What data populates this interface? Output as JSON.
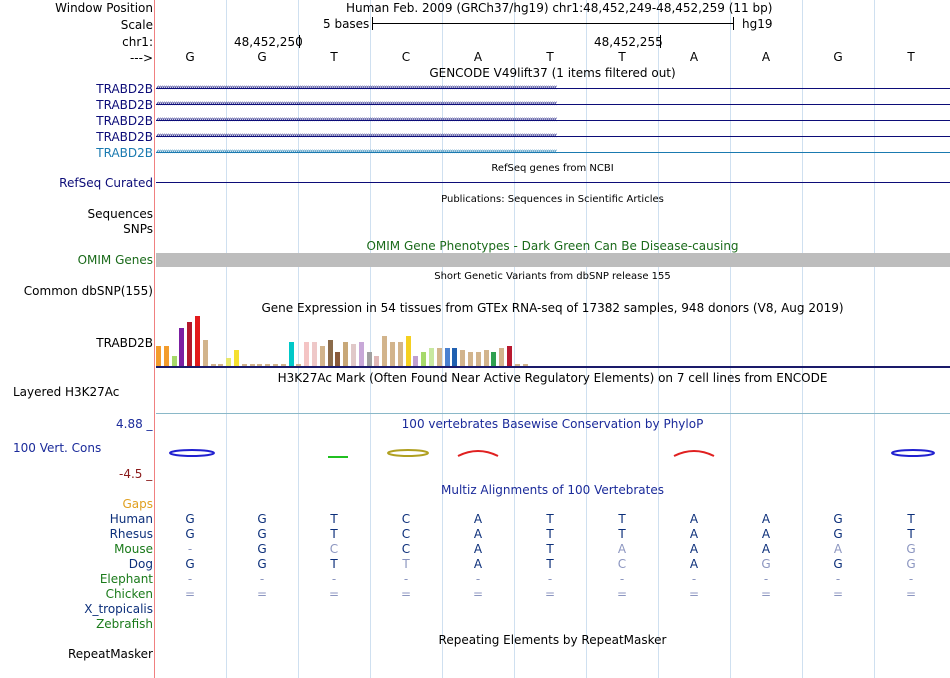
{
  "header": {
    "window_position_label": "Window Position",
    "title": "Human Feb. 2009 (GRCh37/hg19)   chr1:48,452,249-48,452,259 (11 bp)",
    "scale_label": "Scale",
    "scale_text": "5 bases",
    "assembly": "hg19",
    "chrom_label": "chr1:",
    "pos1": "48,452,250",
    "pos2": "48,452,255",
    "strand_label": "--->",
    "bases": [
      "G",
      "G",
      "T",
      "C",
      "A",
      "T",
      "T",
      "A",
      "A",
      "G",
      "T"
    ]
  },
  "tracks": {
    "gencode_title": "GENCODE V49lift37 (1 items filtered out)",
    "gencode_items": [
      "TRABD2B",
      "TRABD2B",
      "TRABD2B",
      "TRABD2B",
      "TRABD2B"
    ],
    "refseq_title": "RefSeq genes from NCBI",
    "refseq_label": "RefSeq Curated",
    "pubs_title": "Publications: Sequences in Scientific Articles",
    "sequences_label": "Sequences",
    "snps_label": "SNPs",
    "omim_title": "OMIM Gene Phenotypes - Dark Green Can Be Disease-causing",
    "omim_label": "OMIM Genes",
    "dbsnp_title": "Short Genetic Variants from dbSNP release 155",
    "dbsnp_label": "Common dbSNP(155)",
    "gtex_title": "Gene Expression in 54 tissues from GTEx RNA-seq of 17382 samples, 948 donors (V8, Aug 2019)",
    "gtex_label": "TRABD2B",
    "h3k27_title": "H3K27Ac Mark (Often Found Near Active Regulatory Elements) on 7 cell lines from ENCODE",
    "h3k27_label": "Layered H3K27Ac",
    "phylop_title": "100 vertebrates Basewise Conservation by PhyloP",
    "phylop_label": "100 Vert. Cons",
    "phylop_max": "4.88 _",
    "phylop_min": "-4.5 _",
    "multiz_title": "Multiz Alignments of 100 Vertebrates",
    "gaps_label": "Gaps",
    "repeat_title": "Repeating Elements by RepeatMasker",
    "repeat_label": "RepeatMasker"
  },
  "gtex_values": [
    {
      "color": "#f39c2c",
      "h": 20
    },
    {
      "color": "#f39c2c",
      "h": 20
    },
    {
      "color": "#a6d96a",
      "h": 10
    },
    {
      "color": "#7b1fa2",
      "h": 38
    },
    {
      "color": "#b2182b",
      "h": 44
    },
    {
      "color": "#e31a1c",
      "h": 50
    },
    {
      "color": "#d2b48c",
      "h": 26
    },
    {
      "color": "#d2b48c",
      "h": 2
    },
    {
      "color": "#d2b48c",
      "h": 2
    },
    {
      "color": "#e8e86a",
      "h": 8
    },
    {
      "color": "#f5e030",
      "h": 16
    },
    {
      "color": "#d2b48c",
      "h": 2
    },
    {
      "color": "#d2b48c",
      "h": 2
    },
    {
      "color": "#d2b48c",
      "h": 2
    },
    {
      "color": "#d2b48c",
      "h": 2
    },
    {
      "color": "#d2b48c",
      "h": 2
    },
    {
      "color": "#d2b48c",
      "h": 2
    },
    {
      "color": "#00c8c8",
      "h": 24
    },
    {
      "color": "#d2b48c",
      "h": 2
    },
    {
      "color": "#f4c4c4",
      "h": 24
    },
    {
      "color": "#eec8c8",
      "h": 24
    },
    {
      "color": "#d2b48c",
      "h": 20
    },
    {
      "color": "#8b6b4a",
      "h": 26
    },
    {
      "color": "#8a5a3a",
      "h": 14
    },
    {
      "color": "#c8a878",
      "h": 24
    },
    {
      "color": "#e0c8c8",
      "h": 22
    },
    {
      "color": "#c8a8d8",
      "h": 24
    },
    {
      "color": "#a0a0a0",
      "h": 14
    },
    {
      "color": "#e0b8b8",
      "h": 10
    },
    {
      "color": "#d2b48c",
      "h": 30
    },
    {
      "color": "#d2b48c",
      "h": 24
    },
    {
      "color": "#d2b48c",
      "h": 24
    },
    {
      "color": "#f5d020",
      "h": 30
    },
    {
      "color": "#c0a0d0",
      "h": 10
    },
    {
      "color": "#a6d96a",
      "h": 14
    },
    {
      "color": "#c8e8a0",
      "h": 18
    },
    {
      "color": "#d2b48c",
      "h": 18
    },
    {
      "color": "#4a80d0",
      "h": 18
    },
    {
      "color": "#2060b0",
      "h": 18
    },
    {
      "color": "#d2b48c",
      "h": 16
    },
    {
      "color": "#d2b48c",
      "h": 14
    },
    {
      "color": "#d2b48c",
      "h": 14
    },
    {
      "color": "#d2b48c",
      "h": 16
    },
    {
      "color": "#30a050",
      "h": 14
    },
    {
      "color": "#d2b48c",
      "h": 18
    },
    {
      "color": "#b81830",
      "h": 20
    },
    {
      "color": "#d2b48c",
      "h": 2
    },
    {
      "color": "#d2b48c",
      "h": 2
    }
  ],
  "multiz": [
    {
      "species": "Human",
      "color": "#0c2f7a",
      "bases": [
        "G",
        "G",
        "T",
        "C",
        "A",
        "T",
        "T",
        "A",
        "A",
        "G",
        "T"
      ],
      "shades": [
        "d",
        "d",
        "d",
        "d",
        "d",
        "d",
        "d",
        "d",
        "d",
        "d",
        "d"
      ]
    },
    {
      "species": "Rhesus",
      "color": "#0c2f7a",
      "bases": [
        "G",
        "G",
        "T",
        "C",
        "A",
        "T",
        "T",
        "A",
        "A",
        "G",
        "T"
      ],
      "shades": [
        "d",
        "d",
        "d",
        "d",
        "d",
        "d",
        "d",
        "d",
        "d",
        "d",
        "d"
      ]
    },
    {
      "species": "Mouse",
      "color": "#1a7a1a",
      "bases": [
        "-",
        "G",
        "C",
        "C",
        "A",
        "T",
        "A",
        "A",
        "A",
        "A",
        "G"
      ],
      "shades": [
        "l",
        "d",
        "l",
        "d",
        "d",
        "d",
        "l",
        "d",
        "d",
        "l",
        "l"
      ]
    },
    {
      "species": "Dog",
      "color": "#0c2f7a",
      "bases": [
        "G",
        "G",
        "T",
        "T",
        "A",
        "T",
        "C",
        "A",
        "G",
        "G",
        "G"
      ],
      "shades": [
        "d",
        "d",
        "d",
        "l",
        "d",
        "d",
        "l",
        "d",
        "l",
        "d",
        "l"
      ]
    },
    {
      "species": "Elephant",
      "color": "#1a7a1a",
      "bases": [
        "-",
        "-",
        "-",
        "-",
        "-",
        "-",
        "-",
        "-",
        "-",
        "-",
        "-"
      ],
      "shades": [
        "l",
        "l",
        "l",
        "l",
        "l",
        "l",
        "l",
        "l",
        "l",
        "l",
        "l"
      ]
    },
    {
      "species": "Chicken",
      "color": "#1a7a1a",
      "bases": [
        "=",
        "=",
        "=",
        "=",
        "=",
        "=",
        "=",
        "=",
        "=",
        "=",
        "="
      ],
      "shades": [
        "l",
        "l",
        "l",
        "l",
        "l",
        "l",
        "l",
        "l",
        "l",
        "l",
        "l"
      ]
    },
    {
      "species": "X_tropicalis",
      "color": "#0c2f7a",
      "bases": [],
      "shades": []
    },
    {
      "species": "Zebrafish",
      "color": "#1a7a1a",
      "bases": [],
      "shades": []
    }
  ],
  "colors": {
    "gencode_dark": "#0c0c78",
    "gencode_light": "#1a7ab0",
    "refseq": "#0c0c78",
    "omim": "#1a6a1a",
    "phylop_title": "#1a2a9a",
    "gaps": "#e0a020"
  }
}
